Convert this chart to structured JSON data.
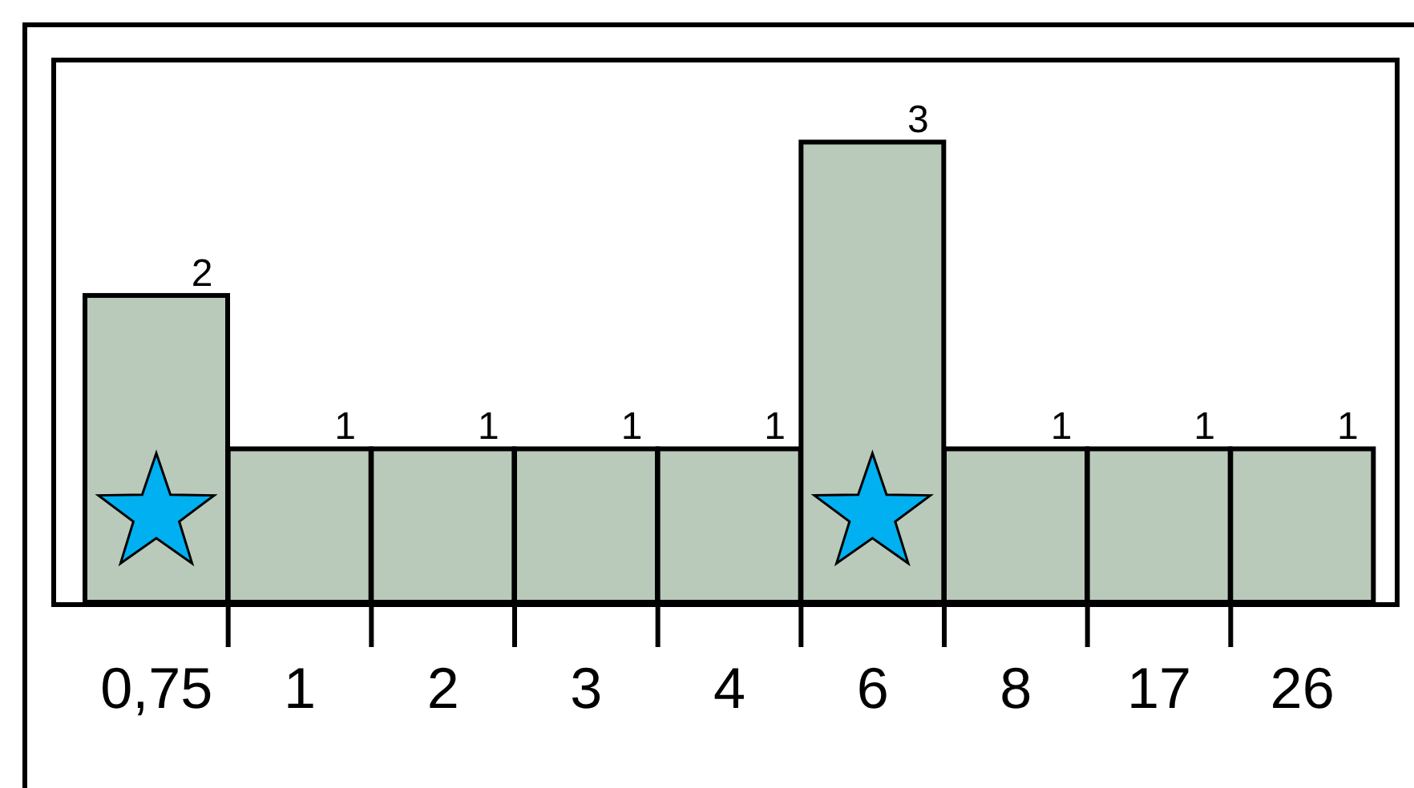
{
  "chart_data": {
    "type": "bar",
    "categories": [
      "0,75",
      "1",
      "2",
      "3",
      "4",
      "6",
      "8",
      "17",
      "26"
    ],
    "values": [
      2,
      1,
      1,
      1,
      1,
      3,
      1,
      1,
      1
    ],
    "color": "#b9cabb",
    "data_labels": true
  }
}
